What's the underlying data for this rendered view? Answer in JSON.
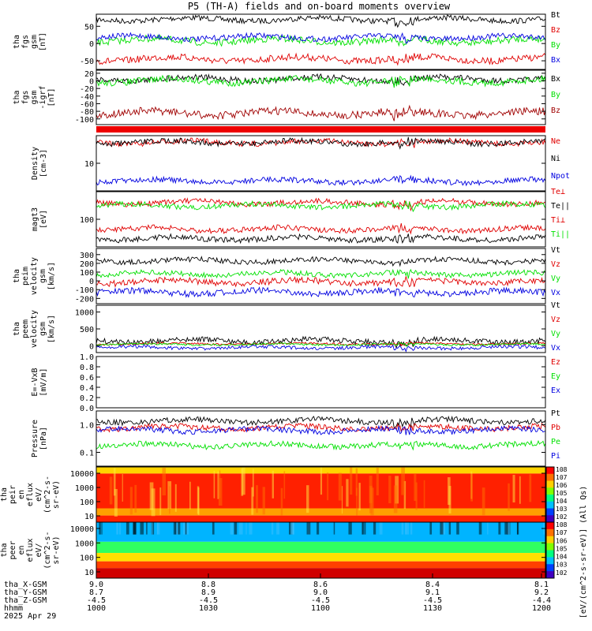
{
  "title": "P5 (TH-A) fields and on-board moments overview",
  "colors": {
    "black": "#000000",
    "red": "#e00000",
    "green": "#00e000",
    "blue": "#0000e0",
    "darkred": "#a00000"
  },
  "x_axis": {
    "ticks": [
      "1000",
      "1030",
      "1100",
      "1130",
      "1200"
    ],
    "rows": [
      {
        "label": "tha_X-GSM",
        "values": [
          "9.0",
          "8.8",
          "8.6",
          "8.4",
          "8.1"
        ]
      },
      {
        "label": "tha_Y-GSM",
        "values": [
          "8.7",
          "8.9",
          "9.0",
          "9.1",
          "9.2"
        ]
      },
      {
        "label": "tha_Z-GSM",
        "values": [
          "-4.5",
          "-4.5",
          "-4.5",
          "-4.5",
          "-4.4"
        ]
      },
      {
        "label": "hhmm",
        "values": [
          "1000",
          "1030",
          "1100",
          "1130",
          "1200"
        ]
      }
    ],
    "date": "2025 Apr 29"
  },
  "chart_data": [
    {
      "type": "line",
      "id": "fgs",
      "ylabel": [
        "tha",
        "fgs",
        "gsm",
        "[nT]"
      ],
      "ylim": [
        -75,
        85
      ],
      "yticks": [
        "50",
        "0",
        "-50"
      ],
      "series": [
        {
          "name": "Bt",
          "color": "black",
          "level": 70,
          "noise": 8
        },
        {
          "name": "Bz",
          "color": "red",
          "level": -45,
          "noise": 10
        },
        {
          "name": "By",
          "color": "green",
          "level": 8,
          "noise": 10
        },
        {
          "name": "Bx",
          "color": "blue",
          "level": 18,
          "noise": 8
        }
      ]
    },
    {
      "type": "line",
      "id": "fgs_igrf",
      "ylabel": [
        "tha",
        "fgs",
        "gsm",
        "-igrf",
        "[nT]"
      ],
      "ylim": [
        -115,
        28
      ],
      "yticks": [
        "20",
        "0",
        "-20",
        "-40",
        "-60",
        "-80",
        "-100"
      ],
      "series": [
        {
          "name": "Bx",
          "color": "black",
          "level": 5,
          "noise": 8
        },
        {
          "name": "By",
          "color": "green",
          "level": 0,
          "noise": 9
        },
        {
          "name": "Bz",
          "color": "darkred",
          "level": -85,
          "noise": 10
        }
      ]
    },
    {
      "type": "line",
      "id": "density",
      "ylabel": [
        "Density",
        "[cm-3]"
      ],
      "yscale": "log",
      "yticks": [
        "10"
      ],
      "series": [
        {
          "name": "Ne",
          "color": "red"
        },
        {
          "name": "Ni",
          "color": "black"
        },
        {
          "name": "Npot",
          "color": "blue"
        }
      ]
    },
    {
      "type": "line",
      "id": "temp",
      "ylabel": [
        "magt3",
        "[eV]"
      ],
      "yscale": "log",
      "yticks": [
        "100"
      ],
      "series": [
        {
          "name": "Te⊥",
          "color": "red"
        },
        {
          "name": "Te||",
          "color": "black"
        },
        {
          "name": "Ti⊥",
          "color": "red"
        },
        {
          "name": "Ti||",
          "color": "green"
        }
      ]
    },
    {
      "type": "line",
      "id": "peim",
      "ylabel": [
        "tha",
        "peim",
        "velocity",
        "gsm",
        "[km/s]"
      ],
      "ylim": [
        -260,
        370
      ],
      "yticks": [
        "300",
        "200",
        "100",
        "0",
        "-100",
        "-200"
      ],
      "series": [
        {
          "name": "Vt",
          "color": "black",
          "level": 230,
          "noise": 30
        },
        {
          "name": "Vz",
          "color": "red",
          "level": -10,
          "noise": 35
        },
        {
          "name": "Vy",
          "color": "green",
          "level": 80,
          "noise": 30
        },
        {
          "name": "Vx",
          "color": "blue",
          "level": -130,
          "noise": 35
        }
      ]
    },
    {
      "type": "line",
      "id": "peem",
      "ylabel": [
        "tha",
        "peem",
        "velocity",
        "gsm",
        "[km/s]"
      ],
      "ylim": [
        -200,
        1200
      ],
      "yticks": [
        "1000",
        "500",
        "0"
      ],
      "series": [
        {
          "name": "Vt",
          "color": "black",
          "level": 150,
          "noise": 80
        },
        {
          "name": "Vz",
          "color": "red",
          "level": 60,
          "noise": 30
        },
        {
          "name": "Vy",
          "color": "green",
          "level": 40,
          "noise": 30
        },
        {
          "name": "Vx",
          "color": "blue",
          "level": -50,
          "noise": 50
        }
      ]
    },
    {
      "type": "line",
      "id": "efield",
      "ylabel": [
        "E=-VxB",
        "[mV/m]"
      ],
      "ylim": [
        0,
        1
      ],
      "yticks": [
        "1.0",
        "0.8",
        "0.6",
        "0.4",
        "0.2",
        "0.0"
      ],
      "series": [
        {
          "name": "Ez",
          "color": "red"
        },
        {
          "name": "Ey",
          "color": "green"
        },
        {
          "name": "Ex",
          "color": "blue"
        }
      ]
    },
    {
      "type": "line",
      "id": "pressure",
      "ylabel": [
        "Pressure",
        "[nPa]"
      ],
      "yscale": "log",
      "yticks": [
        "1.0",
        "0.1"
      ],
      "series": [
        {
          "name": "Pt",
          "color": "black"
        },
        {
          "name": "Pb",
          "color": "red"
        },
        {
          "name": "Pe",
          "color": "green"
        },
        {
          "name": "Pi",
          "color": "blue"
        }
      ]
    },
    {
      "type": "heatmap",
      "id": "peir",
      "ylabel": [
        "tha",
        "peir",
        "en",
        "eflux",
        "eV/",
        "(cm^2-s-",
        "sr-eV)"
      ],
      "yticks": [
        "10000",
        "1000",
        "100",
        "10"
      ]
    },
    {
      "type": "heatmap",
      "id": "peer",
      "ylabel": [
        "tha",
        "peer",
        "en",
        "eflux",
        "eV/",
        "(cm^2-s-",
        "sr-eV)"
      ],
      "yticks": [
        "10000",
        "1000",
        "100",
        "10"
      ]
    }
  ],
  "colorbar": {
    "label": "[eV/(cm^2-s-sr-eV)] (All Qs)",
    "ticks": [
      "10^8",
      "10^7",
      "10^6",
      "10^5",
      "10^4",
      "10^3",
      "10^2"
    ],
    "ticks2": [
      "10^8",
      "10^7",
      "10^6",
      "10^5",
      "10^4",
      "10^3",
      "10^2"
    ]
  }
}
